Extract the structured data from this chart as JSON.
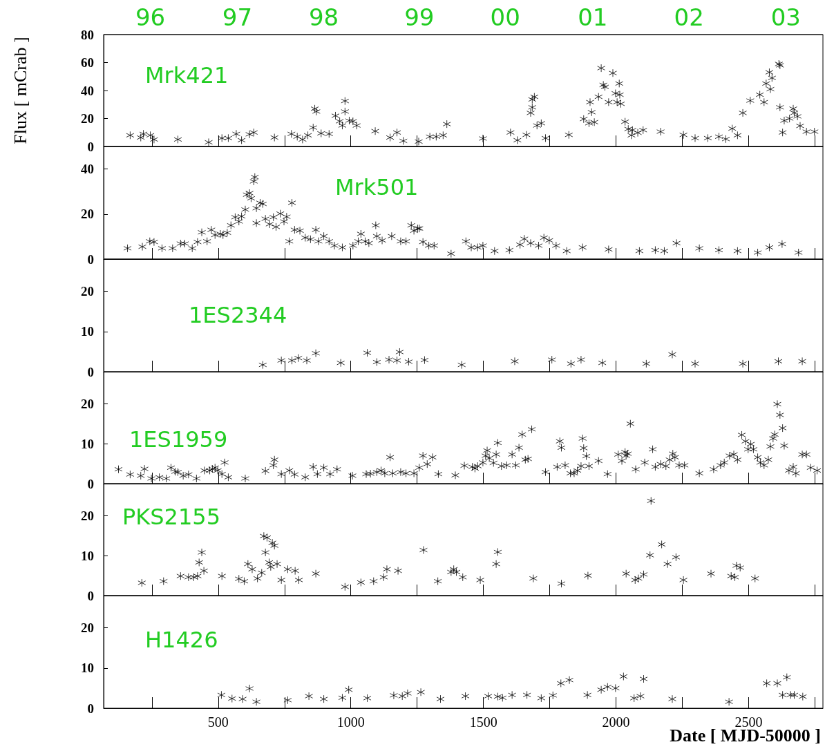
{
  "chart_data": [
    {
      "type": "scatter",
      "title": "Mrk421",
      "ylabel": "Flux [ mCrab ]",
      "marker": "cross",
      "grid": false,
      "tick_labels": "y",
      "xlim": [
        68,
        2780
      ],
      "xticks": [
        {
          "value": 250,
          "label": null
        },
        500,
        {
          "value": 750,
          "label": null
        },
        1000,
        {
          "value": 1250,
          "label": null
        },
        1500,
        {
          "value": 1750,
          "label": null
        },
        2000,
        {
          "value": 2250,
          "label": null
        },
        2500,
        {
          "value": 2750,
          "label": null
        }
      ],
      "x2lim": [
        "1995-12-17",
        "2003-05-21"
      ],
      "x2ticks": [
        {
          "value": "1996-06-10",
          "label": "96"
        },
        {
          "value": "1997-05-04",
          "label": "97"
        },
        {
          "value": "1998-03-26",
          "label": "98"
        },
        {
          "value": "1999-03-21",
          "label": "99"
        },
        {
          "value": "2000-02-08",
          "label": "00"
        },
        {
          "value": "2001-01-03",
          "label": "01"
        },
        {
          "value": "2002-01-01",
          "label": "02"
        },
        {
          "value": "2003-01-01",
          "label": "03"
        }
      ],
      "ylim": [
        0,
        80
      ],
      "yticks": [
        0,
        20,
        40,
        60,
        80
      ],
      "color": "#000000",
      "x": [
        168,
        208,
        218,
        244,
        258,
        348,
        464,
        514,
        538,
        568,
        588,
        618,
        634,
        712,
        776,
        798,
        818,
        838,
        858,
        864,
        870,
        888,
        918,
        942,
        958,
        968,
        978,
        978,
        994,
        1008,
        1022,
        1092,
        1148,
        1174,
        1198,
        1256,
        1298,
        1322,
        1348,
        1362,
        1498,
        1602,
        1628,
        1662,
        1678,
        1684,
        1692,
        1684,
        1702,
        1718,
        1734,
        1822,
        1878,
        1898,
        1908,
        1918,
        1902,
        1934,
        1944,
        1952,
        1958,
        1972,
        1988,
        1998,
        2004,
        2012,
        2014,
        2018,
        2034,
        2046,
        2062,
        2058,
        2082,
        2102,
        2168,
        2254,
        2298,
        2346,
        2388,
        2414,
        2438,
        2458,
        2478,
        2506,
        2542,
        2558,
        2566,
        2578,
        2582,
        2588,
        2614,
        2618,
        2628,
        2634,
        2618,
        2654,
        2668,
        2672,
        2684,
        2694,
        2718,
        2748
      ],
      "values": [
        8,
        6.4,
        9,
        8,
        5,
        5,
        3,
        6,
        6,
        9,
        4.5,
        8.7,
        10,
        6.4,
        9,
        7,
        5,
        8,
        13.5,
        27,
        25,
        9.4,
        9,
        22,
        18,
        15,
        25,
        32.5,
        18.5,
        18,
        15,
        11,
        6.4,
        10,
        4,
        3.5,
        7,
        7,
        8,
        16,
        5.7,
        10,
        4.5,
        8.3,
        24,
        33.6,
        35.5,
        28,
        15,
        16.6,
        6,
        8.3,
        19.6,
        16.6,
        24.5,
        17.4,
        31.7,
        35.5,
        56,
        44,
        42.6,
        31.7,
        52.5,
        38,
        31.7,
        45,
        37,
        30.5,
        17.7,
        12.5,
        11.7,
        8,
        9.8,
        11.7,
        10.6,
        8.3,
        6,
        6,
        7,
        5.3,
        12.8,
        8,
        24,
        32.8,
        37,
        31.7,
        45,
        53,
        41,
        49,
        59,
        58,
        10,
        18.5,
        28,
        20,
        27,
        24,
        21.5,
        14.7,
        10.6,
        10.6
      ]
    },
    {
      "type": "scatter",
      "title": "Mrk501",
      "marker": "cross",
      "grid": false,
      "tick_labels": "y",
      "xlim": [
        68,
        2780
      ],
      "xticks": [
        {
          "value": 250,
          "label": null
        },
        500,
        {
          "value": 750,
          "label": null
        },
        1000,
        {
          "value": 1250,
          "label": null
        },
        1500,
        {
          "value": 1750,
          "label": null
        },
        2000,
        {
          "value": 2250,
          "label": null
        },
        2500,
        {
          "value": 2750,
          "label": null
        }
      ],
      "ylim": [
        0,
        50
      ],
      "yticks": [
        0,
        20,
        40
      ],
      "color": "#000000",
      "x": [
        158,
        214,
        242,
        258,
        288,
        328,
        358,
        374,
        402,
        422,
        438,
        458,
        474,
        488,
        508,
        518,
        534,
        548,
        564,
        578,
        588,
        602,
        608,
        618,
        624,
        634,
        638,
        644,
        658,
        668,
        644,
        678,
        694,
        708,
        718,
        734,
        748,
        758,
        768,
        778,
        788,
        808,
        828,
        848,
        868,
        878,
        898,
        918,
        938,
        968,
        1008,
        1028,
        1038,
        1054,
        1068,
        1094,
        1098,
        1118,
        1154,
        1188,
        1208,
        1228,
        1238,
        1252,
        1258,
        1272,
        1294,
        1314,
        1378,
        1434,
        1454,
        1478,
        1498,
        1542,
        1598,
        1638,
        1654,
        1678,
        1708,
        1728,
        1748,
        1774,
        1814,
        1874,
        1972,
        2088,
        2148,
        2182,
        2228,
        2314,
        2388,
        2458,
        2534,
        2578,
        2626,
        2688
      ],
      "values": [
        4.8,
        5.5,
        7.9,
        7.6,
        4.8,
        4.8,
        6.9,
        6.9,
        4.8,
        7.6,
        11.9,
        7.9,
        13,
        10.7,
        11.2,
        10.7,
        11.7,
        15,
        18.6,
        16.7,
        19,
        22,
        28.6,
        29.3,
        27,
        34.5,
        36.4,
        22.6,
        25,
        24.5,
        16,
        17.9,
        15.5,
        18.6,
        14.3,
        20.2,
        16.7,
        18.8,
        7.9,
        25,
        13,
        12.6,
        9.5,
        8.8,
        13,
        7.9,
        10.2,
        7.9,
        6,
        5.2,
        6,
        7.9,
        11.2,
        7.9,
        7.1,
        15,
        10.2,
        8.3,
        10.2,
        7.9,
        7.9,
        15,
        12.6,
        13.6,
        13.6,
        7.6,
        6,
        6,
        2.4,
        7.9,
        5.2,
        5.2,
        6,
        3.6,
        4,
        6.4,
        9,
        7.1,
        6,
        9.5,
        8.3,
        6,
        3.6,
        5.2,
        4.3,
        3.6,
        4,
        3.6,
        7.1,
        4.8,
        4,
        3.6,
        2.9,
        5.2,
        6.7,
        2.9
      ]
    },
    {
      "type": "scatter",
      "title": "1ES2344",
      "marker": "cross",
      "grid": false,
      "tick_labels": "y",
      "xlim": [
        68,
        2780
      ],
      "xticks": [
        {
          "value": 250,
          "label": null
        },
        500,
        {
          "value": 750,
          "label": null
        },
        1000,
        {
          "value": 1250,
          "label": null
        },
        1500,
        {
          "value": 1750,
          "label": null
        },
        2000,
        {
          "value": 2250,
          "label": null
        },
        2500,
        {
          "value": 2750,
          "label": null
        }
      ],
      "ylim": [
        0,
        28
      ],
      "yticks": [
        0,
        10,
        20
      ],
      "color": "#000000",
      "x": [
        668,
        738,
        778,
        802,
        834,
        868,
        962,
        1062,
        1098,
        1144,
        1174,
        1184,
        1218,
        1278,
        1418,
        1618,
        1758,
        1830,
        1868,
        1948,
        2114,
        2212,
        2298,
        2478,
        2612,
        2702
      ],
      "values": [
        1.7,
        2.8,
        2.8,
        3.4,
        2.8,
        4.6,
        2.2,
        4.7,
        2.4,
        3,
        2.8,
        4.9,
        2.5,
        2.9,
        1.7,
        2.6,
        3,
        2,
        3,
        2.2,
        2,
        4.3,
        2,
        2,
        2.6,
        2.6
      ]
    },
    {
      "type": "scatter",
      "title": "1ES1959",
      "marker": "cross",
      "grid": false,
      "tick_labels": "y",
      "xlim": [
        68,
        2780
      ],
      "xticks": [
        {
          "value": 250,
          "label": null
        },
        500,
        {
          "value": 750,
          "label": null
        },
        1000,
        {
          "value": 1250,
          "label": null
        },
        1500,
        {
          "value": 1750,
          "label": null
        },
        2000,
        {
          "value": 2250,
          "label": null
        },
        2500,
        {
          "value": 2750,
          "label": null
        }
      ],
      "ylim": [
        0,
        28
      ],
      "yticks": [
        0,
        10,
        20
      ],
      "color": "#000000",
      "x": [
        124,
        168,
        208,
        222,
        248,
        278,
        304,
        322,
        338,
        348,
        368,
        388,
        418,
        448,
        468,
        478,
        488,
        498,
        514,
        524,
        538,
        602,
        678,
        708,
        712,
        738,
        768,
        788,
        828,
        858,
        874,
        898,
        922,
        948,
        1006,
        1058,
        1074,
        1098,
        1114,
        1128,
        1148,
        1158,
        1188,
        1208,
        1238,
        1258,
        1272,
        1288,
        1308,
        1330,
        1394,
        1428,
        1458,
        1468,
        1478,
        1498,
        1508,
        1514,
        1522,
        1538,
        1548,
        1554,
        1568,
        1588,
        1608,
        1622,
        1634,
        1646,
        1658,
        1668,
        1682,
        1734,
        1778,
        1788,
        1794,
        1808,
        1828,
        1842,
        1854,
        1868,
        1874,
        1878,
        1888,
        1898,
        1934,
        1968,
        2008,
        2022,
        2034,
        2038,
        2044,
        2054,
        2074,
        2108,
        2138,
        2148,
        2168,
        2188,
        2202,
        2214,
        2222,
        2238,
        2258,
        2314,
        2368,
        2394,
        2408,
        2428,
        2444,
        2458,
        2474,
        2488,
        2498,
        2508,
        2518,
        2534,
        2544,
        2558,
        2574,
        2582,
        2592,
        2598,
        2608,
        2618,
        2628,
        2634,
        2652,
        2668,
        2678,
        2702,
        2718,
        2734,
        2758
      ],
      "values": [
        3.6,
        2.3,
        2,
        3.7,
        1.3,
        1.6,
        1.3,
        4,
        3,
        2.9,
        2,
        2.3,
        1.3,
        3.3,
        3.3,
        3.7,
        4,
        3.3,
        2.4,
        5.3,
        1.6,
        1.3,
        3.2,
        4.6,
        6,
        2.4,
        3.3,
        2.3,
        1.6,
        4.2,
        2.4,
        4,
        2.4,
        3.6,
        2,
        2.4,
        2.5,
        2.9,
        3.3,
        2.6,
        6.6,
        2.6,
        2.9,
        2.6,
        2.6,
        4,
        7,
        4.9,
        6.6,
        2.4,
        2.1,
        4.5,
        4.2,
        3.8,
        4.4,
        5.3,
        7,
        8.3,
        6.4,
        5.2,
        7.3,
        10.2,
        4.4,
        4.6,
        7.3,
        4.6,
        9,
        12.3,
        6,
        6.2,
        13.6,
        2.9,
        4.2,
        10.6,
        9,
        4.6,
        2.6,
        2.6,
        3.3,
        4.4,
        11.3,
        8.9,
        6.9,
        4.4,
        5.7,
        2.4,
        7.3,
        5.7,
        7.9,
        7,
        7.5,
        15,
        3.6,
        5.3,
        8.6,
        4.2,
        4.9,
        4.4,
        6,
        7.5,
        6.6,
        4.6,
        4.6,
        2.6,
        3.6,
        4.6,
        5.3,
        7,
        7.3,
        6,
        12.2,
        10.6,
        8.6,
        9.9,
        8.6,
        6.6,
        5.3,
        4.6,
        6,
        9.3,
        11.3,
        12.3,
        19.9,
        17.2,
        13.9,
        9.5,
        3.3,
        4.2,
        2.6,
        7.3,
        7.3,
        4,
        3.3
      ]
    },
    {
      "type": "scatter",
      "title": "PKS2155",
      "marker": "cross",
      "grid": false,
      "tick_labels": "y",
      "xlim": [
        68,
        2780
      ],
      "xticks": [
        {
          "value": 250,
          "label": null
        },
        500,
        {
          "value": 750,
          "label": null
        },
        1000,
        {
          "value": 1250,
          "label": null
        },
        1500,
        {
          "value": 1750,
          "label": null
        },
        2000,
        {
          "value": 2250,
          "label": null
        },
        2500,
        {
          "value": 2750,
          "label": null
        }
      ],
      "ylim": [
        0,
        28
      ],
      "yticks": [
        0,
        10,
        20
      ],
      "color": "#000000",
      "x": [
        212,
        294,
        358,
        388,
        408,
        422,
        428,
        438,
        446,
        514,
        578,
        598,
        612,
        628,
        648,
        664,
        672,
        678,
        684,
        692,
        698,
        704,
        712,
        722,
        738,
        762,
        790,
        804,
        868,
        978,
        1038,
        1086,
        1124,
        1136,
        1178,
        1274,
        1328,
        1378,
        1388,
        1398,
        1422,
        1488,
        1548,
        1554,
        1688,
        1794,
        1894,
        2038,
        2072,
        2084,
        2104,
        2128,
        2132,
        2172,
        2194,
        2226,
        2254,
        2358,
        2434,
        2448,
        2454,
        2468,
        2524
      ],
      "values": [
        3.2,
        3.6,
        4.9,
        4.6,
        4.6,
        4.9,
        8.3,
        10.8,
        6.2,
        4.9,
        4.2,
        3.6,
        7.9,
        6.6,
        4.3,
        5.7,
        14.9,
        10.8,
        14.5,
        8.3,
        7.2,
        13.2,
        12.5,
        7.9,
        3.9,
        6.6,
        6.2,
        3.9,
        5.5,
        2.2,
        3.3,
        3.6,
        4.6,
        6.6,
        6.2,
        11.4,
        3.6,
        5.9,
        6.6,
        5.9,
        4.6,
        3.9,
        7.9,
        10.9,
        4.3,
        3,
        5,
        5.5,
        3.9,
        4.3,
        5.3,
        10.1,
        23.7,
        12.8,
        7.9,
        9.6,
        3.9,
        5.5,
        4.9,
        4.6,
        7.5,
        7,
        4.3
      ]
    },
    {
      "type": "scatter",
      "title": "H1426",
      "xlabel": "Date [ MJD-50000 ]",
      "marker": "cross",
      "grid": false,
      "xlim": [
        68,
        2780
      ],
      "xticks": [
        {
          "value": 250,
          "label": null
        },
        500,
        {
          "value": 750,
          "label": null
        },
        1000,
        {
          "value": 1250,
          "label": null
        },
        1500,
        {
          "value": 1750,
          "label": null
        },
        2000,
        {
          "value": 2250,
          "label": null
        },
        2500,
        {
          "value": 2750,
          "label": null
        }
      ],
      "ylim": [
        0,
        28
      ],
      "yticks": [
        0,
        10,
        20
      ],
      "color": "#000000",
      "x": [
        512,
        552,
        592,
        618,
        644,
        762,
        842,
        898,
        968,
        992,
        1062,
        1162,
        1194,
        1214,
        1264,
        1338,
        1432,
        1518,
        1554,
        1572,
        1608,
        1664,
        1718,
        1762,
        1792,
        1824,
        1892,
        1944,
        1968,
        1998,
        2028,
        2068,
        2092,
        2104,
        2212,
        2426,
        2568,
        2608,
        2628,
        2644,
        2658,
        2672,
        2704
      ],
      "values": [
        3.3,
        2.4,
        2.3,
        4.9,
        1.6,
        2,
        3,
        2.3,
        2.6,
        4.6,
        2.5,
        3.2,
        3,
        3.7,
        4,
        2.3,
        3,
        3,
        2.9,
        2.6,
        3.3,
        3.3,
        2.5,
        3.2,
        6.2,
        7,
        3.3,
        4.6,
        5.3,
        5,
        7.9,
        2.5,
        3,
        7.3,
        2.3,
        1.6,
        6.2,
        6.2,
        3.3,
        7.7,
        3.3,
        3.3,
        2.9
      ]
    }
  ]
}
